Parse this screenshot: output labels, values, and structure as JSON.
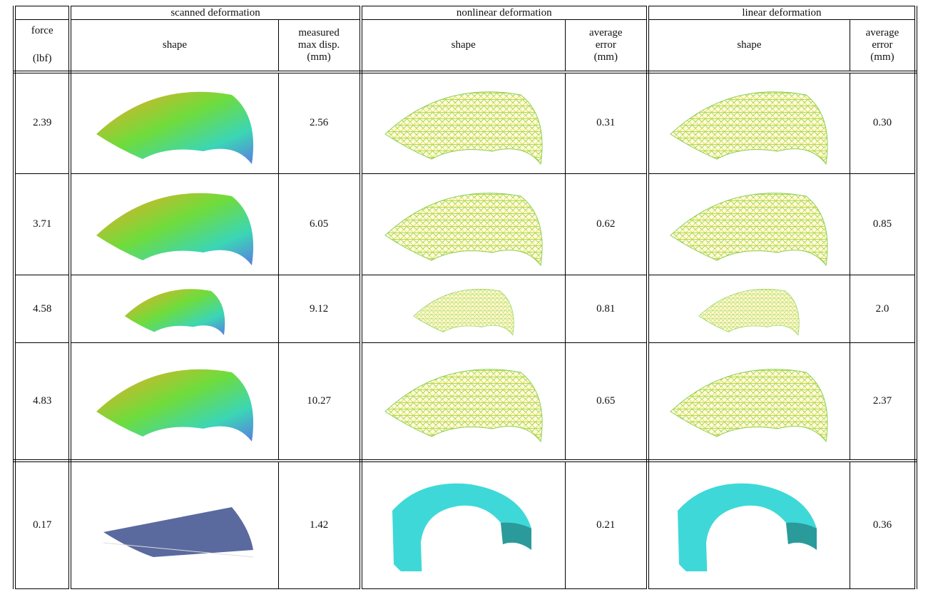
{
  "header": {
    "groups": [
      "scanned deformation",
      "nonlinear deformation",
      "linear deformation"
    ],
    "force": [
      "force",
      "(lbf)"
    ],
    "subheaders": [
      {
        "shape": "shape",
        "value": [
          "measured",
          "max disp.",
          "(mm)"
        ]
      },
      {
        "shape": "shape",
        "value": [
          "average",
          "error",
          "(mm)"
        ]
      },
      {
        "shape": "shape",
        "value": [
          "average",
          "error",
          "(mm)"
        ]
      }
    ]
  },
  "rows": [
    {
      "force": "2.39",
      "measured": "2.56",
      "nonlinear_error": "0.31",
      "linear_error": "0.30"
    },
    {
      "force": "3.71",
      "measured": "6.05",
      "nonlinear_error": "0.62",
      "linear_error": "0.85"
    },
    {
      "force": "4.58",
      "measured": "9.12",
      "nonlinear_error": "0.81",
      "linear_error": "2.0"
    },
    {
      "force": "4.83",
      "measured": "10.27",
      "nonlinear_error": "0.65",
      "linear_error": "2.37"
    },
    {
      "force": "0.17",
      "measured": "1.42",
      "nonlinear_error": "0.21",
      "linear_error": "0.36"
    }
  ]
}
